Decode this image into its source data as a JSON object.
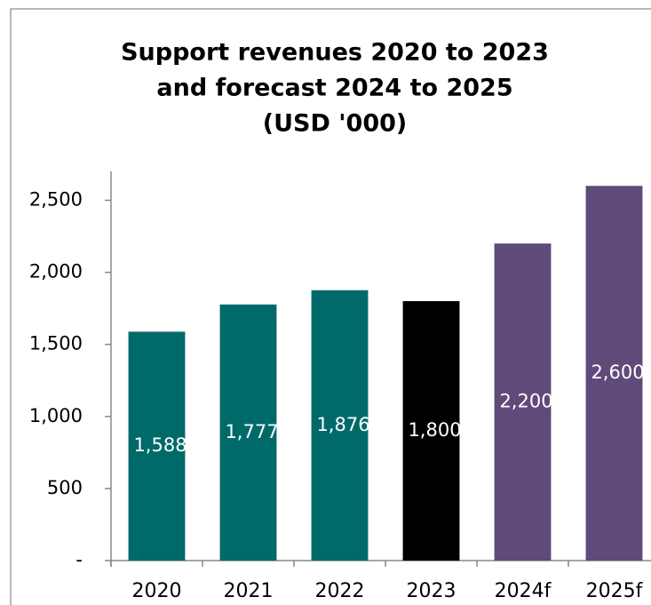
{
  "chart_data": {
    "type": "bar",
    "title": [
      "Support revenues 2020 to 2023",
      "and forecast 2024 to 2025",
      "(USD '000)"
    ],
    "categories": [
      "2020",
      "2021",
      "2022",
      "2023",
      "2024f",
      "2025f"
    ],
    "values": [
      1588,
      1777,
      1876,
      1800,
      2200,
      2600
    ],
    "value_labels": [
      "1,588",
      "1,777",
      "1,876",
      "1,800",
      "2,200",
      "2,600"
    ],
    "colors": [
      "#006a6b",
      "#006a6b",
      "#006a6b",
      "#000000",
      "#5f4a7a",
      "#5f4a7a"
    ],
    "ylim": [
      0,
      2700
    ],
    "yticks": [
      {
        "value": 0,
        "label": "-"
      },
      500,
      {
        "value": 1000,
        "label": "1,000"
      },
      {
        "value": 1500,
        "label": "1,500"
      },
      {
        "value": 2000,
        "label": "2,000"
      },
      {
        "value": 2500,
        "label": "2,500"
      }
    ],
    "grid": false
  }
}
